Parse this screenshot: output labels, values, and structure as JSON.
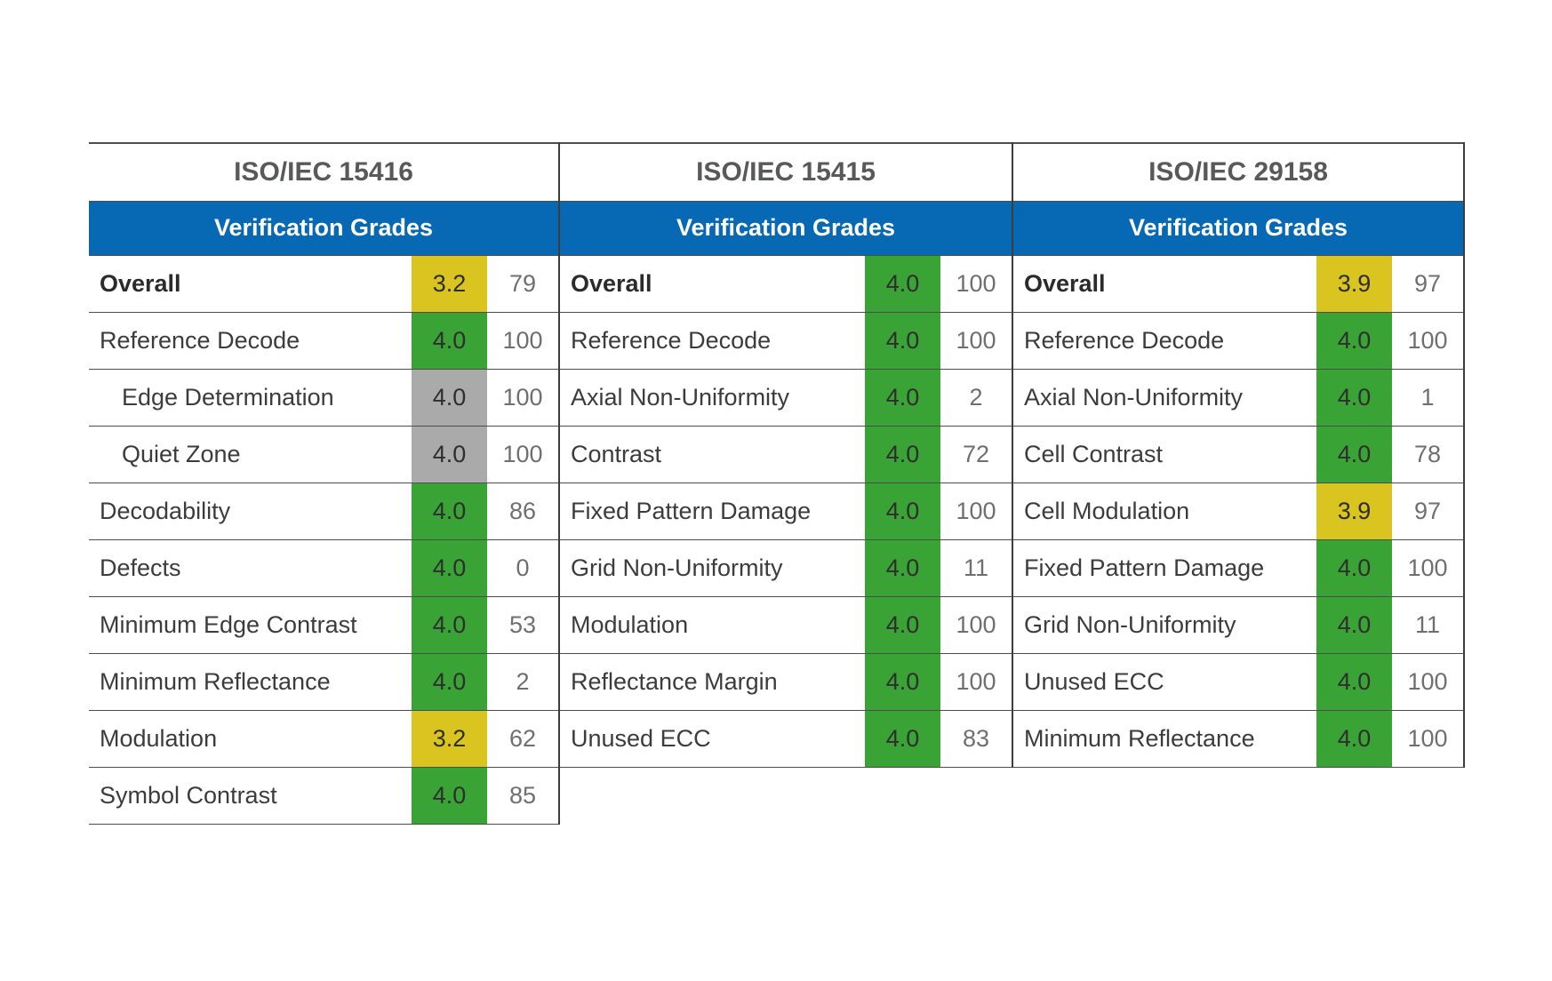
{
  "colors": {
    "header_blue": "#0769B4",
    "grade_green": "#3AA336",
    "grade_yellow": "#D9C420",
    "grade_gray": "#AAAAAA"
  },
  "tables": [
    {
      "title": "ISO/IEC 15416",
      "header": "Verification Grades",
      "rows": [
        {
          "label": "Overall",
          "bold": true,
          "indent": false,
          "grade": "3.2",
          "grade_color": "yellow",
          "value": "79"
        },
        {
          "label": "Reference Decode",
          "bold": false,
          "indent": false,
          "grade": "4.0",
          "grade_color": "green",
          "value": "100"
        },
        {
          "label": "Edge Determination",
          "bold": false,
          "indent": true,
          "grade": "4.0",
          "grade_color": "gray",
          "value": "100"
        },
        {
          "label": "Quiet Zone",
          "bold": false,
          "indent": true,
          "grade": "4.0",
          "grade_color": "gray",
          "value": "100"
        },
        {
          "label": "Decodability",
          "bold": false,
          "indent": false,
          "grade": "4.0",
          "grade_color": "green",
          "value": "86"
        },
        {
          "label": "Defects",
          "bold": false,
          "indent": false,
          "grade": "4.0",
          "grade_color": "green",
          "value": "0"
        },
        {
          "label": "Minimum Edge Contrast",
          "bold": false,
          "indent": false,
          "grade": "4.0",
          "grade_color": "green",
          "value": "53"
        },
        {
          "label": "Minimum Reflectance",
          "bold": false,
          "indent": false,
          "grade": "4.0",
          "grade_color": "green",
          "value": "2"
        },
        {
          "label": "Modulation",
          "bold": false,
          "indent": false,
          "grade": "3.2",
          "grade_color": "yellow",
          "value": "62"
        },
        {
          "label": "Symbol Contrast",
          "bold": false,
          "indent": false,
          "grade": "4.0",
          "grade_color": "green",
          "value": "85"
        }
      ]
    },
    {
      "title": "ISO/IEC 15415",
      "header": "Verification Grades",
      "rows": [
        {
          "label": "Overall",
          "bold": true,
          "indent": false,
          "grade": "4.0",
          "grade_color": "green",
          "value": "100"
        },
        {
          "label": "Reference Decode",
          "bold": false,
          "indent": false,
          "grade": "4.0",
          "grade_color": "green",
          "value": "100"
        },
        {
          "label": "Axial Non-Uniformity",
          "bold": false,
          "indent": false,
          "grade": "4.0",
          "grade_color": "green",
          "value": "2"
        },
        {
          "label": "Contrast",
          "bold": false,
          "indent": false,
          "grade": "4.0",
          "grade_color": "green",
          "value": "72"
        },
        {
          "label": "Fixed Pattern Damage",
          "bold": false,
          "indent": false,
          "grade": "4.0",
          "grade_color": "green",
          "value": "100"
        },
        {
          "label": "Grid Non-Uniformity",
          "bold": false,
          "indent": false,
          "grade": "4.0",
          "grade_color": "green",
          "value": "11"
        },
        {
          "label": "Modulation",
          "bold": false,
          "indent": false,
          "grade": "4.0",
          "grade_color": "green",
          "value": "100"
        },
        {
          "label": "Reflectance Margin",
          "bold": false,
          "indent": false,
          "grade": "4.0",
          "grade_color": "green",
          "value": "100"
        },
        {
          "label": "Unused ECC",
          "bold": false,
          "indent": false,
          "grade": "4.0",
          "grade_color": "green",
          "value": "83"
        }
      ]
    },
    {
      "title": "ISO/IEC 29158",
      "header": "Verification Grades",
      "rows": [
        {
          "label": "Overall",
          "bold": true,
          "indent": false,
          "grade": "3.9",
          "grade_color": "yellow",
          "value": "97"
        },
        {
          "label": "Reference Decode",
          "bold": false,
          "indent": false,
          "grade": "4.0",
          "grade_color": "green",
          "value": "100"
        },
        {
          "label": "Axial Non-Uniformity",
          "bold": false,
          "indent": false,
          "grade": "4.0",
          "grade_color": "green",
          "value": "1"
        },
        {
          "label": "Cell Contrast",
          "bold": false,
          "indent": false,
          "grade": "4.0",
          "grade_color": "green",
          "value": "78"
        },
        {
          "label": "Cell Modulation",
          "bold": false,
          "indent": false,
          "grade": "3.9",
          "grade_color": "yellow",
          "value": "97"
        },
        {
          "label": "Fixed Pattern Damage",
          "bold": false,
          "indent": false,
          "grade": "4.0",
          "grade_color": "green",
          "value": "100"
        },
        {
          "label": "Grid Non-Uniformity",
          "bold": false,
          "indent": false,
          "grade": "4.0",
          "grade_color": "green",
          "value": "11"
        },
        {
          "label": "Unused ECC",
          "bold": false,
          "indent": false,
          "grade": "4.0",
          "grade_color": "green",
          "value": "100"
        },
        {
          "label": "Minimum Reflectance",
          "bold": false,
          "indent": false,
          "grade": "4.0",
          "grade_color": "green",
          "value": "100"
        }
      ]
    }
  ]
}
